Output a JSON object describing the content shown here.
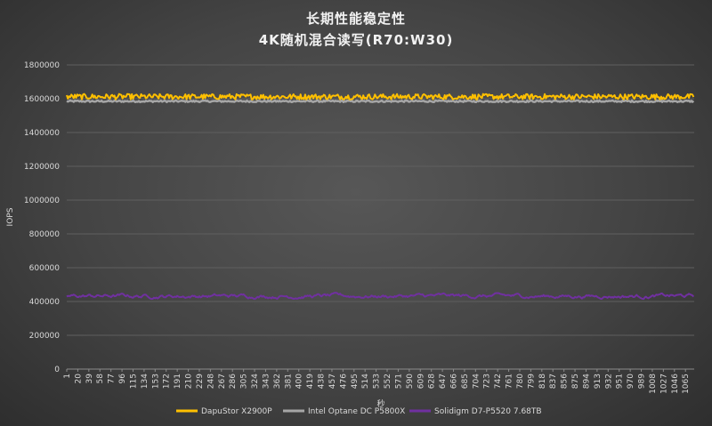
{
  "chart_data": {
    "type": "line",
    "title": "长期性能稳定性",
    "subtitle": "4K随机混合读写(R70:W30)",
    "xlabel": "秒",
    "ylabel": "IOPS",
    "ylim": [
      0,
      1800000
    ],
    "yticks": [
      "0",
      "200000",
      "400000",
      "600000",
      "800000",
      "1000000",
      "1200000",
      "1400000",
      "1600000",
      "1800000"
    ],
    "xlim": [
      1,
      1080
    ],
    "xticks": [
      "1",
      "20",
      "39",
      "58",
      "77",
      "96",
      "115",
      "134",
      "153",
      "172",
      "191",
      "210",
      "229",
      "248",
      "267",
      "286",
      "305",
      "324",
      "343",
      "362",
      "381",
      "400",
      "419",
      "438",
      "457",
      "476",
      "495",
      "514",
      "533",
      "552",
      "571",
      "590",
      "609",
      "628",
      "647",
      "666",
      "685",
      "704",
      "723",
      "742",
      "761",
      "780",
      "799",
      "818",
      "837",
      "856",
      "875",
      "894",
      "913",
      "932",
      "951",
      "970",
      "989",
      "1008",
      "1027",
      "1046",
      "1065"
    ],
    "grid": true,
    "legend_position": "bottom",
    "series": [
      {
        "name": "DapuStor X2900P",
        "color": "#FFC000",
        "mean": 1612000,
        "min": 1598000,
        "max": 1630000
      },
      {
        "name": "Intel Optane DC P5800X",
        "color": "#A6A6A6",
        "mean": 1585000,
        "min": 1580000,
        "max": 1590000
      },
      {
        "name": "Solidigm D7-P5520 7.68TB",
        "color": "#7030A0",
        "mean": 432000,
        "min": 415000,
        "max": 452000
      }
    ]
  }
}
